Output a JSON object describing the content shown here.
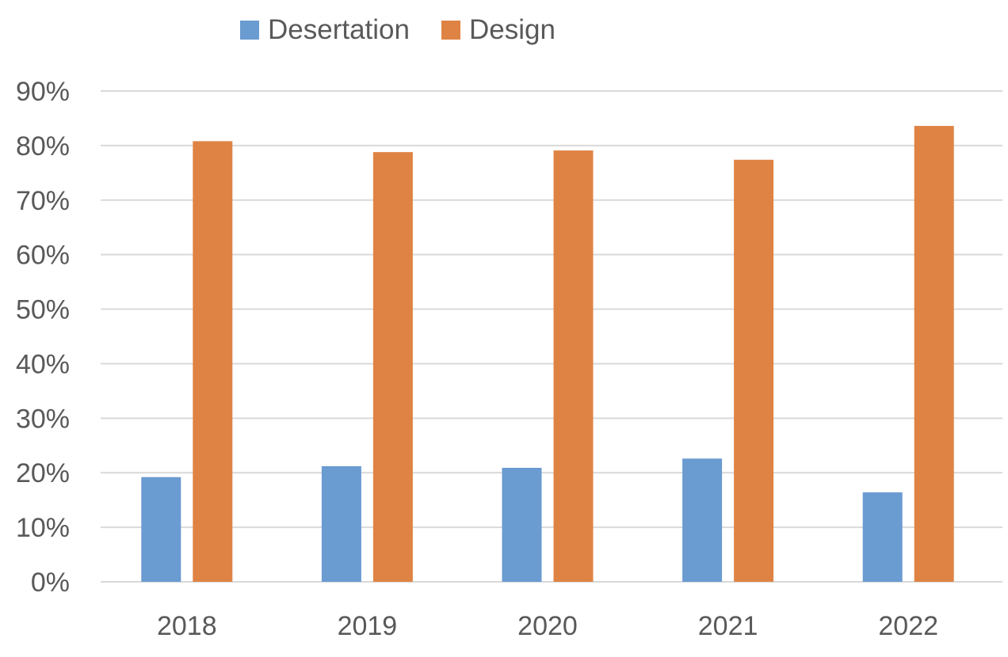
{
  "chart_data": {
    "type": "bar",
    "title": "",
    "xlabel": "",
    "ylabel": "",
    "categories": [
      "2018",
      "2019",
      "2020",
      "2021",
      "2022"
    ],
    "series": [
      {
        "name": "Desertation",
        "color": "#6a9bd1",
        "values": [
          19.2,
          21.2,
          20.9,
          22.6,
          16.4
        ]
      },
      {
        "name": "Design",
        "color": "#df8344",
        "values": [
          80.8,
          78.8,
          79.1,
          77.4,
          83.6
        ]
      }
    ],
    "ylim": [
      0,
      90
    ],
    "yticks": [
      "0%",
      "10%",
      "20%",
      "30%",
      "40%",
      "50%",
      "60%",
      "70%",
      "80%",
      "90%"
    ],
    "grid": true,
    "legend_position": "top"
  }
}
